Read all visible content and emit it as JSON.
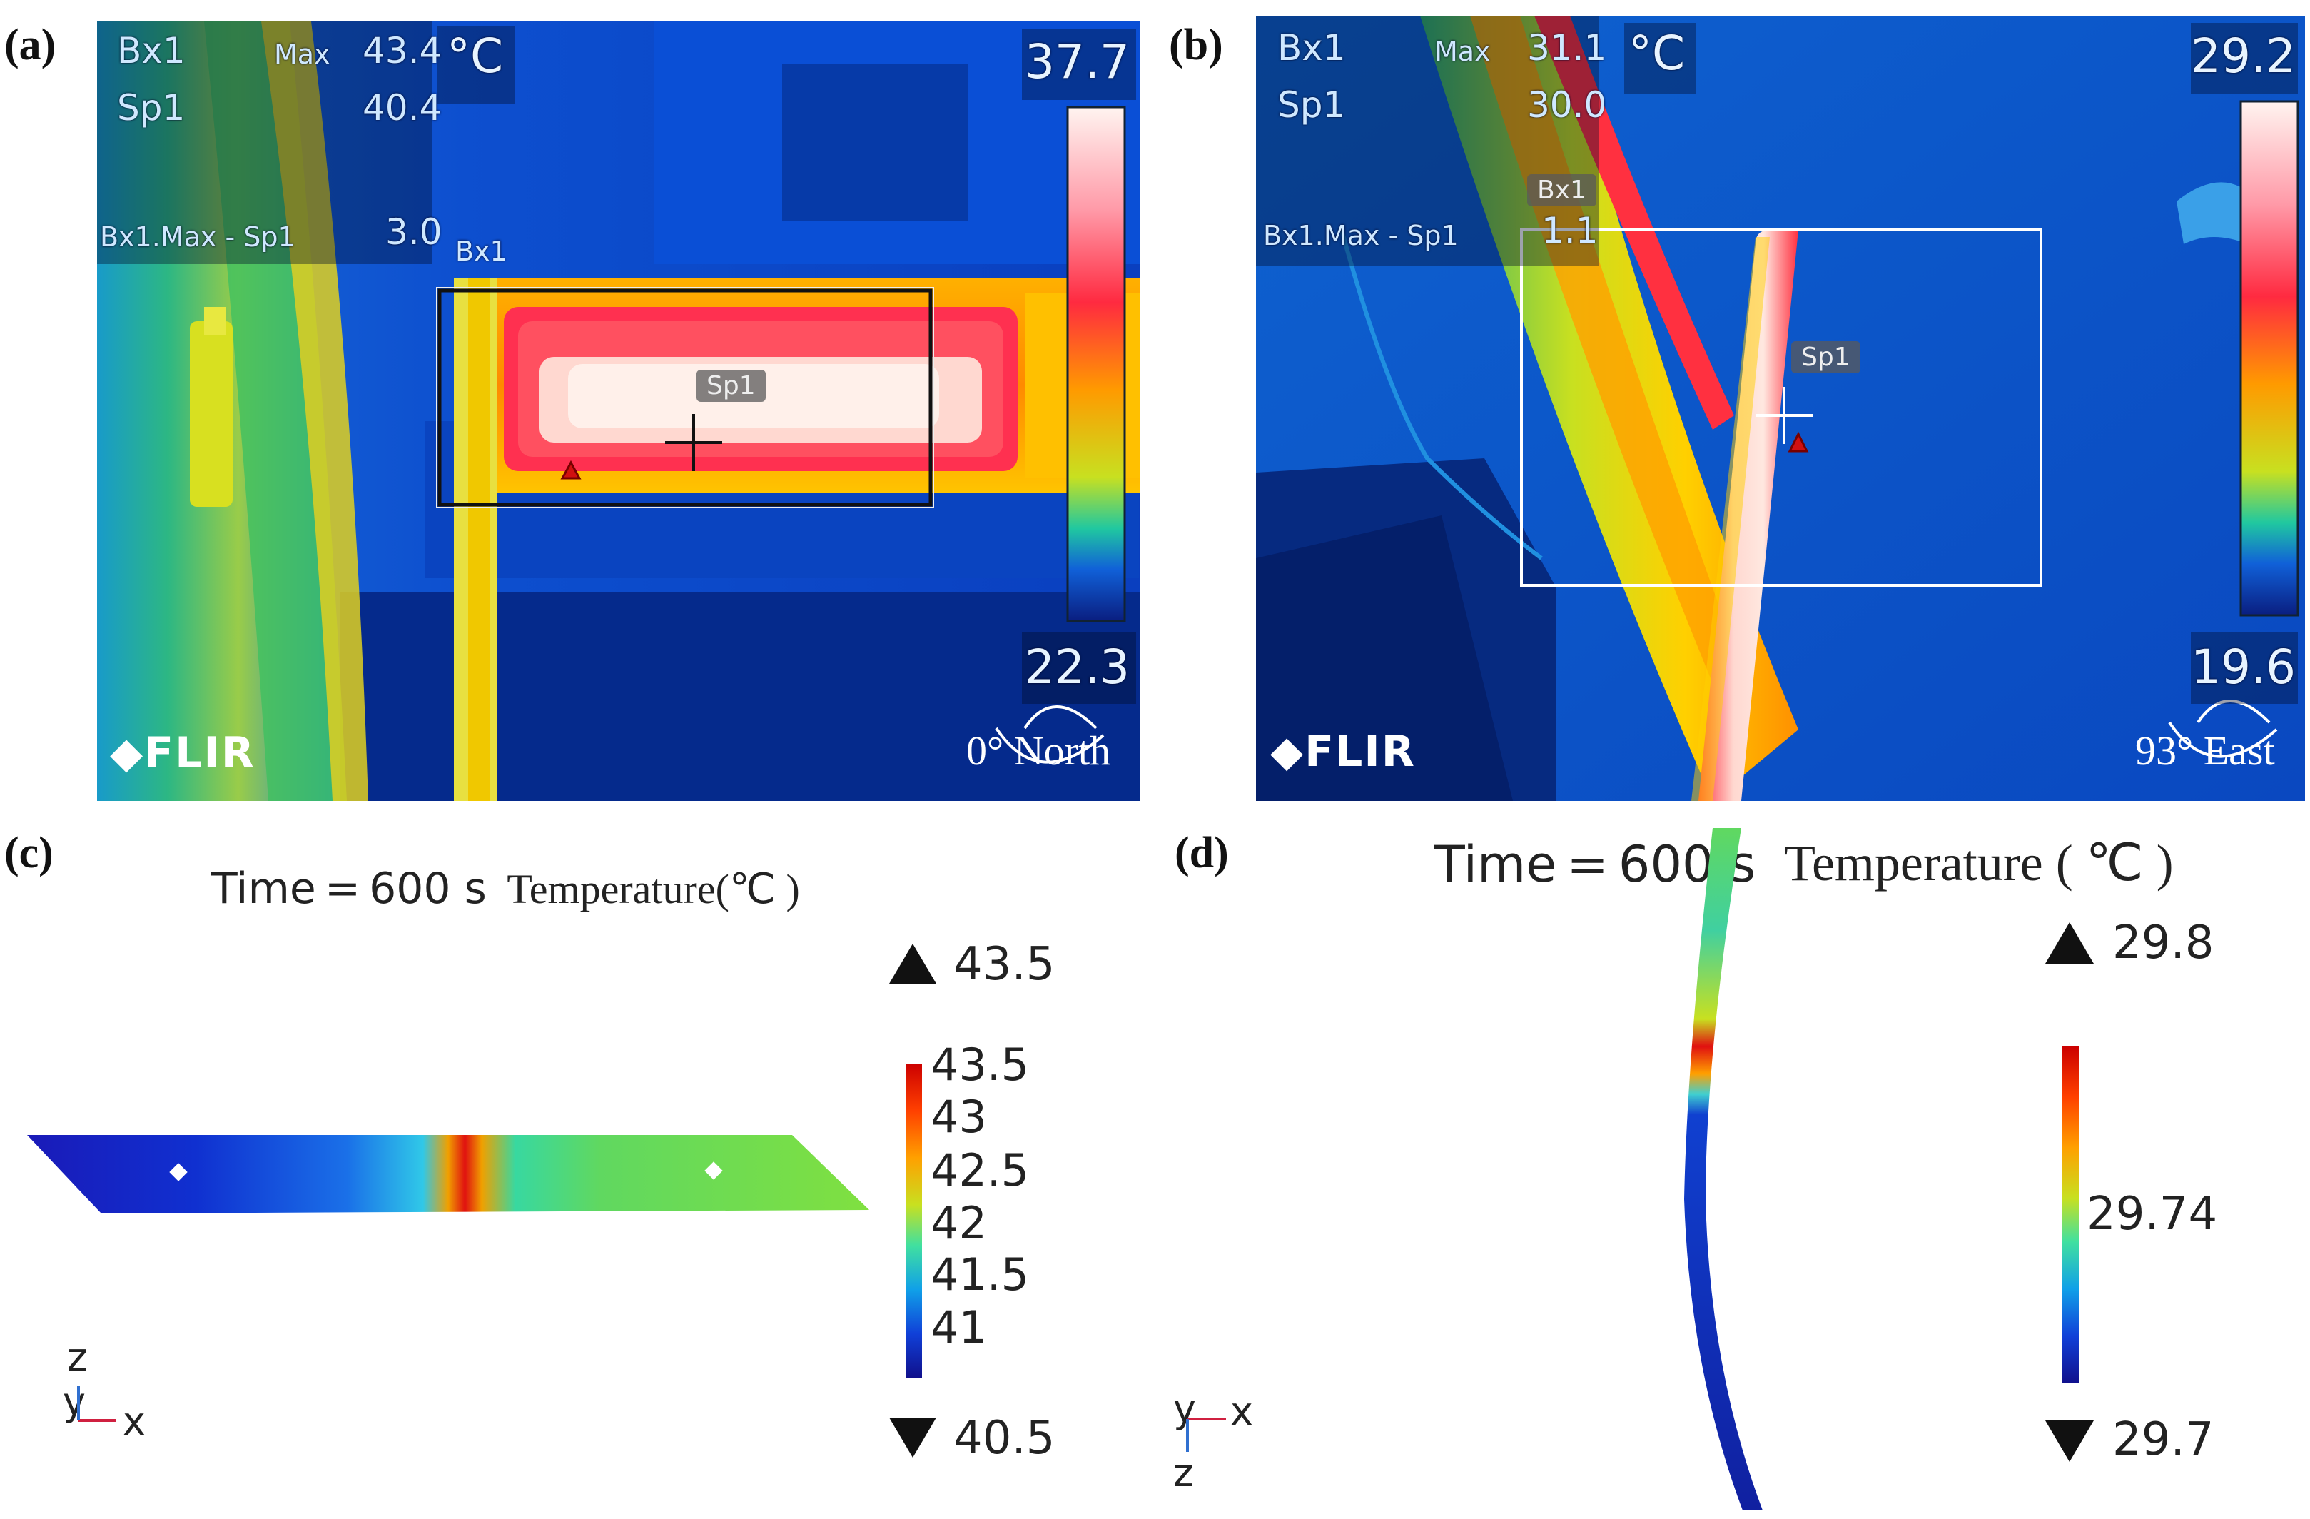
{
  "panels": {
    "a": {
      "letter": "(a)",
      "bx1": "Bx1",
      "max": "Max",
      "max_value": "43.4",
      "unit": "°C",
      "sp1": "Sp1",
      "sp1_value": "40.4",
      "diff_label": "Bx1.Max - Sp1",
      "diff_value": "3.0",
      "box_tag": "Bx1",
      "spot_tag": "Sp1",
      "scale_max": "37.7",
      "scale_min": "22.3",
      "brand": "FLIR",
      "compass": "0° North"
    },
    "b": {
      "letter": "(b)",
      "bx1": "Bx1",
      "max": "Max",
      "max_value": "31.1",
      "unit": "°C",
      "sp1": "Sp1",
      "sp1_value": "30.0",
      "diff_label": "Bx1.Max - Sp1",
      "diff_value": "1.1",
      "box_tag": "Bx1",
      "spot_tag": "Sp1",
      "scale_max": "29.2",
      "scale_min": "19.6",
      "brand": "FLIR",
      "compass": "93° East"
    },
    "c": {
      "letter": "(c)",
      "time": "Time = 600 s",
      "temp_label": "Temperature(℃ )",
      "max_marker": "43.5",
      "min_marker": "40.5",
      "ticks": [
        "43.5",
        "43",
        "42.5",
        "42",
        "41.5",
        "41"
      ],
      "axis_z": "z",
      "axis_y": "y",
      "axis_x": "x"
    },
    "d": {
      "letter": "(d)",
      "time": "Time = 600 s",
      "temp_label": "Temperature ( ℃ )",
      "max_marker": "29.8",
      "min_marker": "29.7",
      "ticks": [
        "29.74"
      ],
      "axis_z": "z",
      "axis_y": "y",
      "axis_x": "x"
    }
  },
  "colors": {
    "thermal_blue": "#0a3cc8",
    "thermal_hot": "#ff2a40",
    "thermal_white": "#ffe6e0"
  }
}
